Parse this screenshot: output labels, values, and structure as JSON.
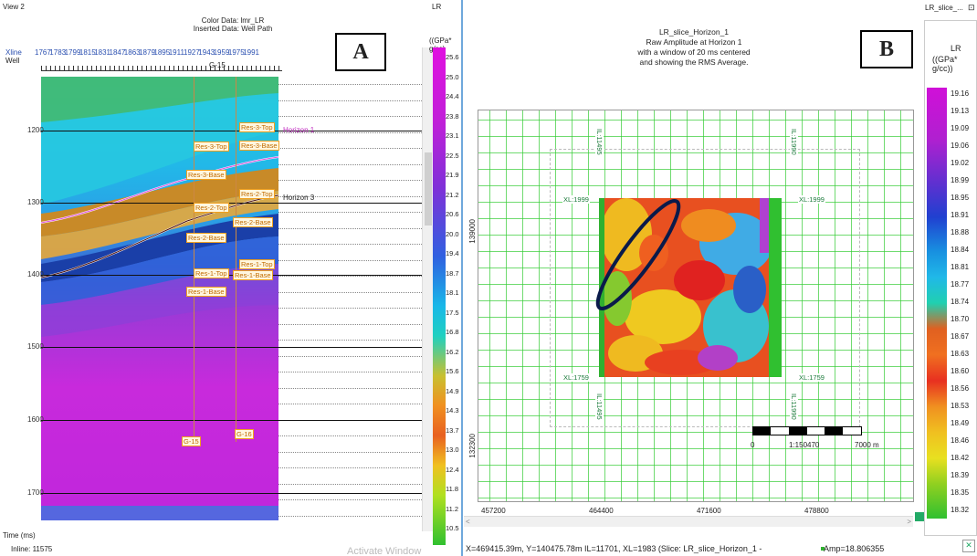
{
  "panel_a": {
    "window_title": "View 2",
    "header_line1": "Color Data: lmr_LR",
    "header_line2": "Inserted Data: Well Path",
    "panel_label": "A",
    "xline_label": "Xline",
    "well_label": "Well",
    "xline_ticks": [
      "1767",
      "1783",
      "1799",
      "1815",
      "1831",
      "1847",
      "1863",
      "1879",
      "1895",
      "1911",
      "1927",
      "1943",
      "1959",
      "1975",
      "1991"
    ],
    "well_top_label": "G-15",
    "y_ticks": [
      "1200",
      "1300",
      "1400",
      "1500",
      "1600",
      "1700"
    ],
    "y_axis_title": "Time (ms)",
    "inline_text": "Inline: 11575",
    "watermark": "Activate Window",
    "horizon_1": "Horizon 1",
    "horizon_3": "Horizon 3",
    "well_tags": [
      "Res-3-Top",
      "Res-3-Base",
      "Res-3-Top",
      "Res-3-Base",
      "Res-2-Top",
      "Res-2-Base",
      "Res-2-Top",
      "Res-2-Base",
      "Res-1-Top",
      "Res-1-Base",
      "Res-1-Top",
      "Res-1-Base"
    ],
    "well_bottom_1": "G-15",
    "well_bottom_2": "G-16",
    "colorbar_title": "LR",
    "colorbar_unit": "((GPa* g/cc)",
    "colorbar_values": [
      "25.6",
      "25.0",
      "24.4",
      "23.8",
      "23.1",
      "22.5",
      "21.9",
      "21.2",
      "20.6",
      "20.0",
      "19.4",
      "18.7",
      "18.1",
      "17.5",
      "16.8",
      "16.2",
      "15.6",
      "14.9",
      "14.3",
      "13.7",
      "13.0",
      "12.4",
      "11.8",
      "11.2",
      "10.5"
    ]
  },
  "panel_b": {
    "title_line1": "LR_slice_Horizon_1",
    "title_line2": "Raw Amplitude at Horizon 1",
    "title_line3": "with a window of 20 ms centered",
    "title_line4": "and showing the RMS Average.",
    "panel_label": "B",
    "tab_title": "LR_slice_...",
    "colorbar_title": "LR",
    "colorbar_unit": "((GPa* g/cc))",
    "colorbar_values": [
      "19.16",
      "19.13",
      "19.09",
      "19.06",
      "19.02",
      "18.99",
      "18.95",
      "18.91",
      "18.88",
      "18.84",
      "18.81",
      "18.77",
      "18.74",
      "18.70",
      "18.67",
      "18.63",
      "18.60",
      "18.56",
      "18.53",
      "18.49",
      "18.46",
      "18.42",
      "18.39",
      "18.35",
      "18.32"
    ],
    "x_ticks": [
      "457200",
      "464400",
      "471600",
      "478800"
    ],
    "y_ticks": [
      "139000",
      "132300"
    ],
    "xl_top_left": "XL:1999",
    "xl_top_right": "XL:1999",
    "xl_bot_left": "XL:1759",
    "xl_bot_right": "XL:1759",
    "il_top_left": "IL:11495",
    "il_top_right": "IL:11990",
    "il_bot_left": "IL:11495",
    "il_bot_right": "IL:11990",
    "scale_zero": "0",
    "scale_ratio": "1:150470",
    "scale_max": "7000  m",
    "status_coords": "X=469415.39m, Y=140475.78m IL=11701, XL=1983  (Slice: LR_slice_Horizon_1 -",
    "status_amp": "Amp=18.806355"
  }
}
